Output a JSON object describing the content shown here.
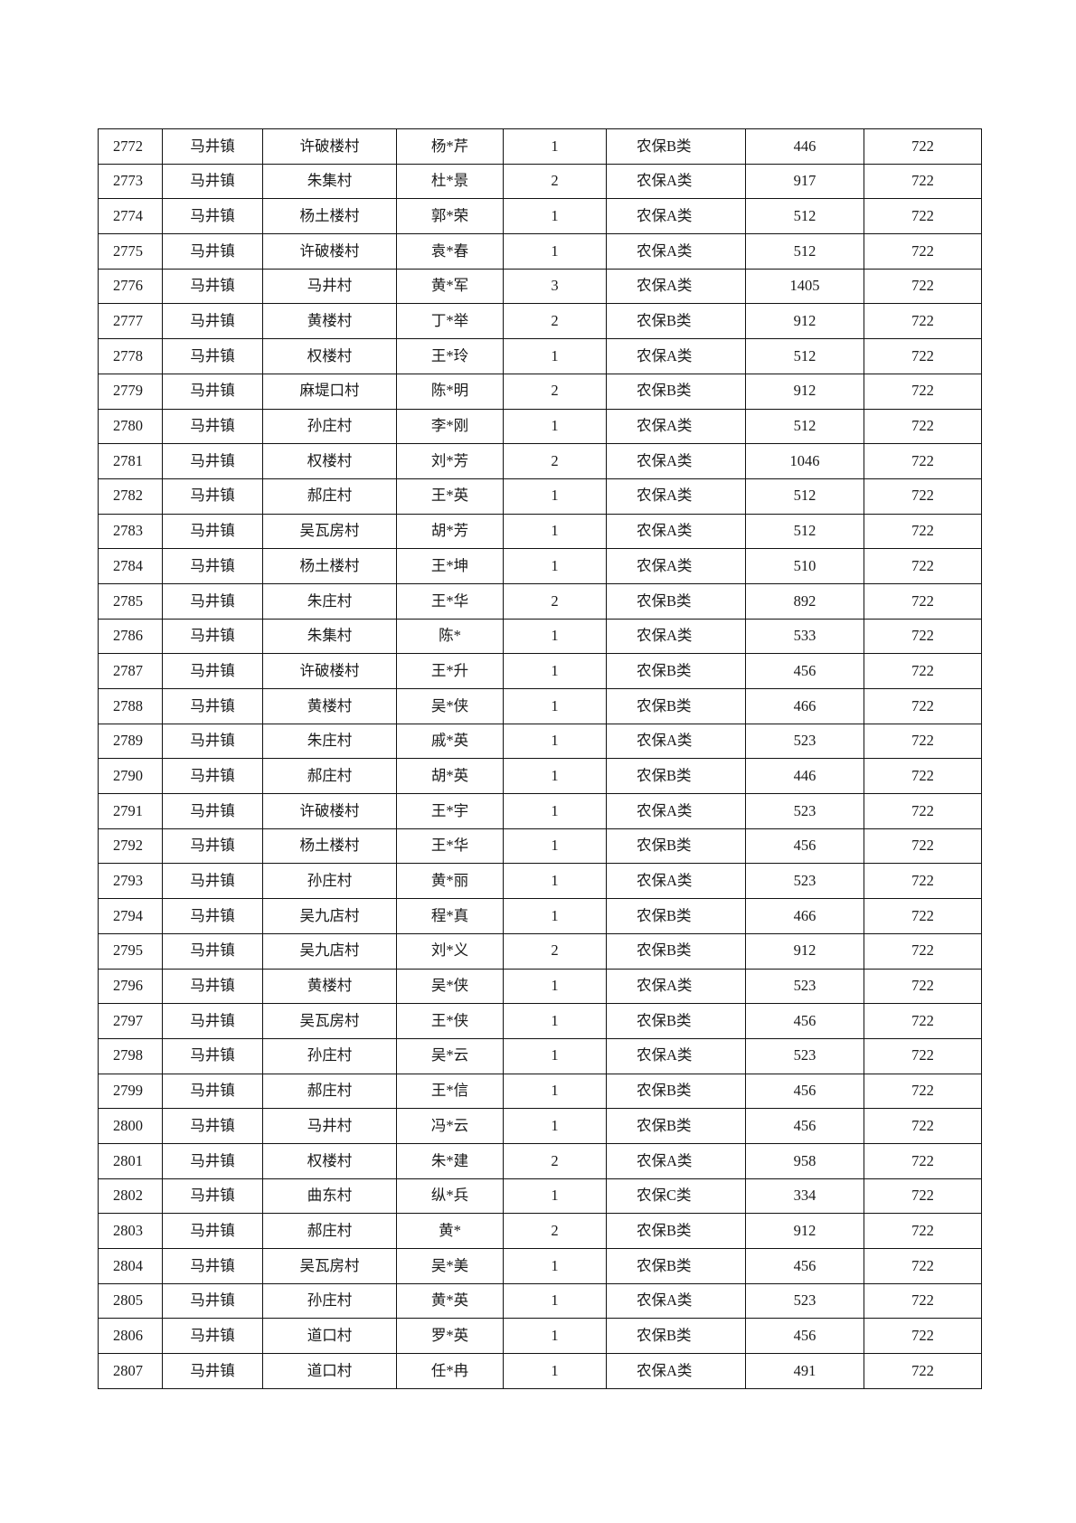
{
  "table": {
    "rows": [
      [
        "2772",
        "马井镇",
        "许破楼村",
        "杨*芹",
        "1",
        "农保B类",
        "446",
        "722"
      ],
      [
        "2773",
        "马井镇",
        "朱集村",
        "杜*景",
        "2",
        "农保A类",
        "917",
        "722"
      ],
      [
        "2774",
        "马井镇",
        "杨土楼村",
        "郭*荣",
        "1",
        "农保A类",
        "512",
        "722"
      ],
      [
        "2775",
        "马井镇",
        "许破楼村",
        "袁*春",
        "1",
        "农保A类",
        "512",
        "722"
      ],
      [
        "2776",
        "马井镇",
        "马井村",
        "黄*军",
        "3",
        "农保A类",
        "1405",
        "722"
      ],
      [
        "2777",
        "马井镇",
        "黄楼村",
        "丁*举",
        "2",
        "农保B类",
        "912",
        "722"
      ],
      [
        "2778",
        "马井镇",
        "权楼村",
        "王*玲",
        "1",
        "农保A类",
        "512",
        "722"
      ],
      [
        "2779",
        "马井镇",
        "麻堤口村",
        "陈*明",
        "2",
        "农保B类",
        "912",
        "722"
      ],
      [
        "2780",
        "马井镇",
        "孙庄村",
        "李*刚",
        "1",
        "农保A类",
        "512",
        "722"
      ],
      [
        "2781",
        "马井镇",
        "权楼村",
        "刘*芳",
        "2",
        "农保A类",
        "1046",
        "722"
      ],
      [
        "2782",
        "马井镇",
        "郝庄村",
        "王*英",
        "1",
        "农保A类",
        "512",
        "722"
      ],
      [
        "2783",
        "马井镇",
        "吴瓦房村",
        "胡*芳",
        "1",
        "农保A类",
        "512",
        "722"
      ],
      [
        "2784",
        "马井镇",
        "杨土楼村",
        "王*坤",
        "1",
        "农保A类",
        "510",
        "722"
      ],
      [
        "2785",
        "马井镇",
        "朱庄村",
        "王*华",
        "2",
        "农保B类",
        "892",
        "722"
      ],
      [
        "2786",
        "马井镇",
        "朱集村",
        "陈*",
        "1",
        "农保A类",
        "533",
        "722"
      ],
      [
        "2787",
        "马井镇",
        "许破楼村",
        "王*升",
        "1",
        "农保B类",
        "456",
        "722"
      ],
      [
        "2788",
        "马井镇",
        "黄楼村",
        "吴*侠",
        "1",
        "农保B类",
        "466",
        "722"
      ],
      [
        "2789",
        "马井镇",
        "朱庄村",
        "戚*英",
        "1",
        "农保A类",
        "523",
        "722"
      ],
      [
        "2790",
        "马井镇",
        "郝庄村",
        "胡*英",
        "1",
        "农保B类",
        "446",
        "722"
      ],
      [
        "2791",
        "马井镇",
        "许破楼村",
        "王*宇",
        "1",
        "农保A类",
        "523",
        "722"
      ],
      [
        "2792",
        "马井镇",
        "杨土楼村",
        "王*华",
        "1",
        "农保B类",
        "456",
        "722"
      ],
      [
        "2793",
        "马井镇",
        "孙庄村",
        "黄*丽",
        "1",
        "农保A类",
        "523",
        "722"
      ],
      [
        "2794",
        "马井镇",
        "吴九店村",
        "程*真",
        "1",
        "农保B类",
        "466",
        "722"
      ],
      [
        "2795",
        "马井镇",
        "吴九店村",
        "刘*义",
        "2",
        "农保B类",
        "912",
        "722"
      ],
      [
        "2796",
        "马井镇",
        "黄楼村",
        "吴*侠",
        "1",
        "农保A类",
        "523",
        "722"
      ],
      [
        "2797",
        "马井镇",
        "吴瓦房村",
        "王*侠",
        "1",
        "农保B类",
        "456",
        "722"
      ],
      [
        "2798",
        "马井镇",
        "孙庄村",
        "吴*云",
        "1",
        "农保A类",
        "523",
        "722"
      ],
      [
        "2799",
        "马井镇",
        "郝庄村",
        "王*信",
        "1",
        "农保B类",
        "456",
        "722"
      ],
      [
        "2800",
        "马井镇",
        "马井村",
        "冯*云",
        "1",
        "农保B类",
        "456",
        "722"
      ],
      [
        "2801",
        "马井镇",
        "权楼村",
        "朱*建",
        "2",
        "农保A类",
        "958",
        "722"
      ],
      [
        "2802",
        "马井镇",
        "曲东村",
        "纵*兵",
        "1",
        "农保C类",
        "334",
        "722"
      ],
      [
        "2803",
        "马井镇",
        "郝庄村",
        "黄*",
        "2",
        "农保B类",
        "912",
        "722"
      ],
      [
        "2804",
        "马井镇",
        "吴瓦房村",
        "吴*美",
        "1",
        "农保B类",
        "456",
        "722"
      ],
      [
        "2805",
        "马井镇",
        "孙庄村",
        "黄*英",
        "1",
        "农保A类",
        "523",
        "722"
      ],
      [
        "2806",
        "马井镇",
        "道口村",
        "罗*英",
        "1",
        "农保B类",
        "456",
        "722"
      ],
      [
        "2807",
        "马井镇",
        "道口村",
        "任*冉",
        "1",
        "农保A类",
        "491",
        "722"
      ]
    ]
  }
}
